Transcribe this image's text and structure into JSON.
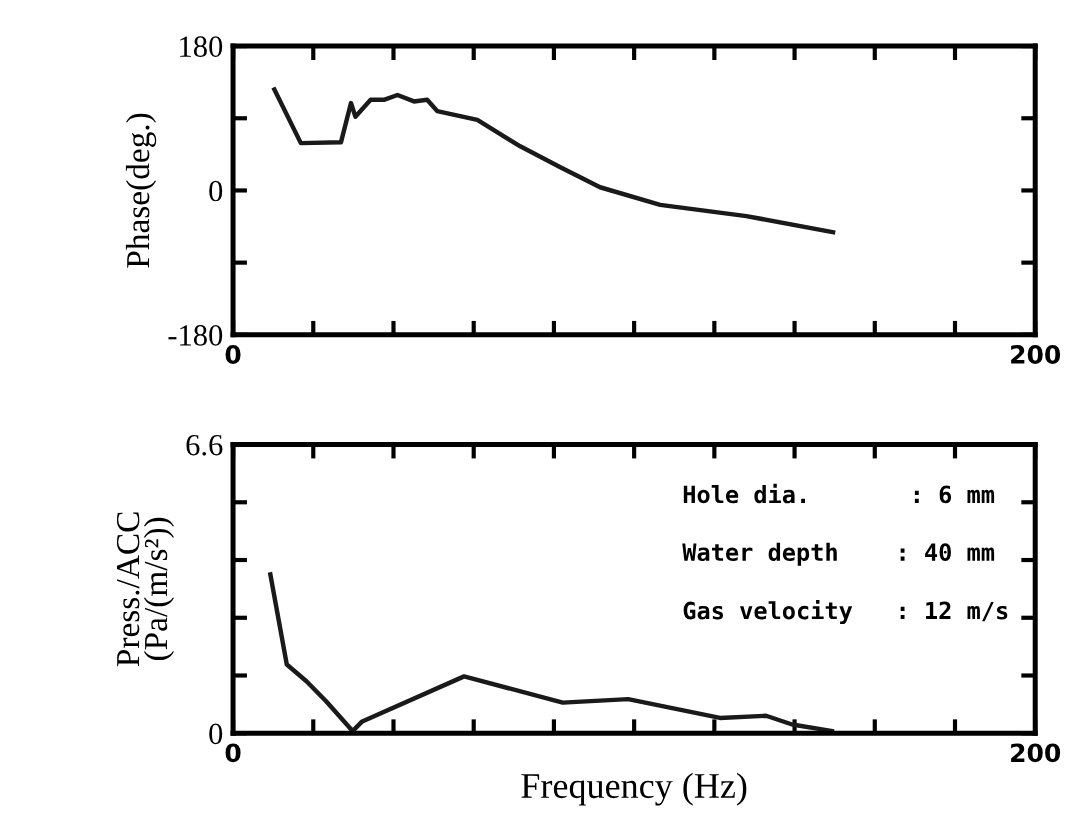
{
  "chart_data": [
    {
      "type": "line",
      "ylabel": "Phase(deg.)",
      "x": [
        10.3,
        16.9,
        26.9,
        29.4,
        30.5,
        34.3,
        37.6,
        41,
        45.1,
        48.4,
        50.9,
        60.9,
        71.6,
        81.6,
        91.5,
        106.5,
        128,
        149.6
      ],
      "series": [
        {
          "color": "#1a1a1a",
          "values": [
            126,
            59,
            60,
            109,
            92,
            113,
            113,
            119,
            111,
            113,
            99,
            88,
            55,
            29,
            4,
            -18,
            -32,
            -52
          ]
        }
      ],
      "xlim": [
        0,
        200
      ],
      "xticks": [
        0,
        {
          "value": 20,
          "label": null
        },
        {
          "value": 40,
          "label": null
        },
        {
          "value": 60,
          "label": null
        },
        {
          "value": 80,
          "label": null
        },
        {
          "value": 100,
          "label": null
        },
        {
          "value": 120,
          "label": null
        },
        {
          "value": 140,
          "label": null
        },
        {
          "value": 160,
          "label": null
        },
        {
          "value": 180,
          "label": null
        },
        200
      ],
      "ylim": [
        -180,
        180
      ],
      "yticks": [
        -180,
        {
          "value": -90,
          "label": null
        },
        0,
        {
          "value": 90,
          "label": null
        },
        180
      ],
      "grid": false,
      "legend": false,
      "marker": "none",
      "line_style": "solid"
    },
    {
      "type": "line",
      "xlabel": "Frequency (Hz)",
      "ylabel": "Press./ACC\n(Pa/(m/s²))",
      "x": [
        9.3,
        13.4,
        18.3,
        23.2,
        29.8,
        32.2,
        57.6,
        82.2,
        98.5,
        121.4,
        132.9,
        139.4,
        149.3
      ],
      "series": [
        {
          "color": "#1a1a1a",
          "values": [
            3.63,
            1.57,
            1.19,
            0.73,
            0.05,
            0.27,
            1.3,
            0.7,
            0.78,
            0.35,
            0.4,
            0.2,
            0.05
          ]
        }
      ],
      "annotations": [
        "Hole dia.       : 6 mm",
        "Water depth    : 40 mm",
        "Gas velocity   : 12 m/s"
      ],
      "xlim": [
        0,
        200
      ],
      "xticks": [
        0,
        {
          "value": 20,
          "label": null
        },
        {
          "value": 40,
          "label": null
        },
        {
          "value": 60,
          "label": null
        },
        {
          "value": 80,
          "label": null
        },
        {
          "value": 100,
          "label": null
        },
        {
          "value": 120,
          "label": null
        },
        {
          "value": 140,
          "label": null
        },
        {
          "value": 160,
          "label": null
        },
        {
          "value": 180,
          "label": null
        },
        200
      ],
      "ylim": [
        0,
        6.6
      ],
      "yticks": [
        0,
        {
          "value": 1.32,
          "label": null
        },
        {
          "value": 2.64,
          "label": null
        },
        {
          "value": 3.96,
          "label": null
        },
        {
          "value": 5.28,
          "label": null
        },
        6.6
      ],
      "grid": false,
      "legend": false,
      "marker": "none",
      "line_style": "solid"
    }
  ]
}
